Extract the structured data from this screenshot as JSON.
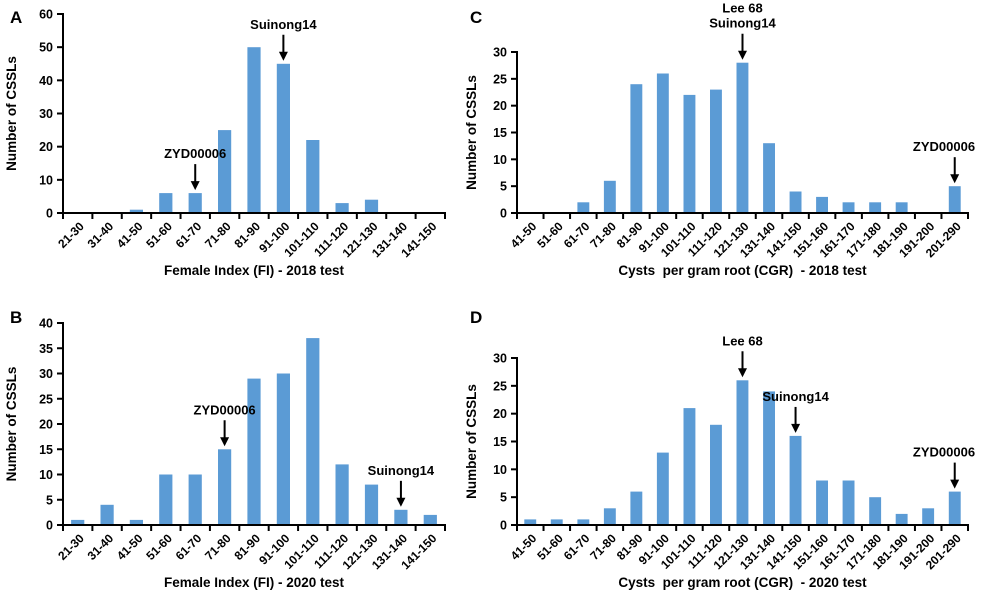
{
  "chart_data": [
    {
      "panel": "A",
      "type": "bar",
      "title": "",
      "xlabel": "Female Index (FI) - 2018 test",
      "ylabel": "Number of CSSLs",
      "ylim": [
        0,
        60
      ],
      "ytick_step": 10,
      "grid": false,
      "legend": "none",
      "bar_color": "#5B9BD5",
      "categories": [
        "21-30",
        "31-40",
        "41-50",
        "51-60",
        "61-70",
        "71-80",
        "81-90",
        "91-100",
        "101-110",
        "111-120",
        "121-130",
        "131-140",
        "141-150"
      ],
      "values": [
        0,
        0,
        1,
        6,
        6,
        25,
        50,
        45,
        22,
        3,
        4,
        0,
        0
      ],
      "annotations": [
        {
          "lines": [
            "ZYD00006"
          ],
          "category": "61-70",
          "value": 6
        },
        {
          "lines": [
            "Suinong14"
          ],
          "category": "91-100",
          "value": 45
        }
      ]
    },
    {
      "panel": "B",
      "type": "bar",
      "title": "",
      "xlabel": "Female Index (FI) - 2020 test",
      "ylabel": "Number of CSSLs",
      "ylim": [
        0,
        40
      ],
      "ytick_step": 5,
      "grid": false,
      "legend": "none",
      "bar_color": "#5B9BD5",
      "categories": [
        "21-30",
        "31-40",
        "41-50",
        "51-60",
        "61-70",
        "71-80",
        "81-90",
        "91-100",
        "101-110",
        "111-120",
        "121-130",
        "131-140",
        "141-150"
      ],
      "values": [
        1,
        4,
        1,
        10,
        10,
        15,
        29,
        30,
        37,
        12,
        8,
        3,
        2
      ],
      "annotations": [
        {
          "lines": [
            "ZYD00006"
          ],
          "category": "71-80",
          "value": 15
        },
        {
          "lines": [
            "Suinong14"
          ],
          "category": "131-140",
          "value": 3
        }
      ]
    },
    {
      "panel": "C",
      "type": "bar",
      "title": "",
      "xlabel": "Cysts  per gram root (CGR)  - 2018 test",
      "ylabel": "Number of CSSLs",
      "ylim": [
        0,
        30
      ],
      "ytick_step": 5,
      "grid": false,
      "legend": "none",
      "bar_color": "#5B9BD5",
      "categories": [
        "41-50",
        "51-60",
        "61-70",
        "71-80",
        "81-90",
        "91-100",
        "101-110",
        "111-120",
        "121-130",
        "131-140",
        "141-150",
        "151-160",
        "161-170",
        "171-180",
        "181-190",
        "191-200",
        "201-290"
      ],
      "values": [
        0,
        0,
        2,
        6,
        24,
        26,
        22,
        23,
        28,
        13,
        4,
        3,
        2,
        2,
        2,
        0,
        5
      ],
      "annotations": [
        {
          "lines": [
            "Lee 68",
            "Suinong14"
          ],
          "category": "121-130",
          "value": 28
        },
        {
          "lines": [
            "ZYD00006"
          ],
          "category": "201-290",
          "value": 5
        }
      ]
    },
    {
      "panel": "D",
      "type": "bar",
      "title": "",
      "xlabel": "Cysts  per gram root (CGR)  - 2020 test",
      "ylabel": "Number of CSSLs",
      "ylim": [
        0,
        30
      ],
      "ytick_step": 5,
      "grid": false,
      "legend": "none",
      "bar_color": "#5B9BD5",
      "categories": [
        "41-50",
        "51-60",
        "61-70",
        "71-80",
        "81-90",
        "91-100",
        "101-110",
        "111-120",
        "121-130",
        "131-140",
        "141-150",
        "151-160",
        "161-170",
        "171-180",
        "181-190",
        "191-200",
        "201-290"
      ],
      "values": [
        1,
        1,
        1,
        3,
        6,
        13,
        21,
        18,
        26,
        24,
        16,
        8,
        8,
        5,
        2,
        3,
        6
      ],
      "annotations": [
        {
          "lines": [
            "Lee 68"
          ],
          "category": "121-130",
          "value": 26
        },
        {
          "lines": [
            "Suinong14"
          ],
          "category": "141-150",
          "value": 16
        },
        {
          "lines": [
            "ZYD00006"
          ],
          "category": "201-290",
          "value": 6
        }
      ]
    }
  ]
}
